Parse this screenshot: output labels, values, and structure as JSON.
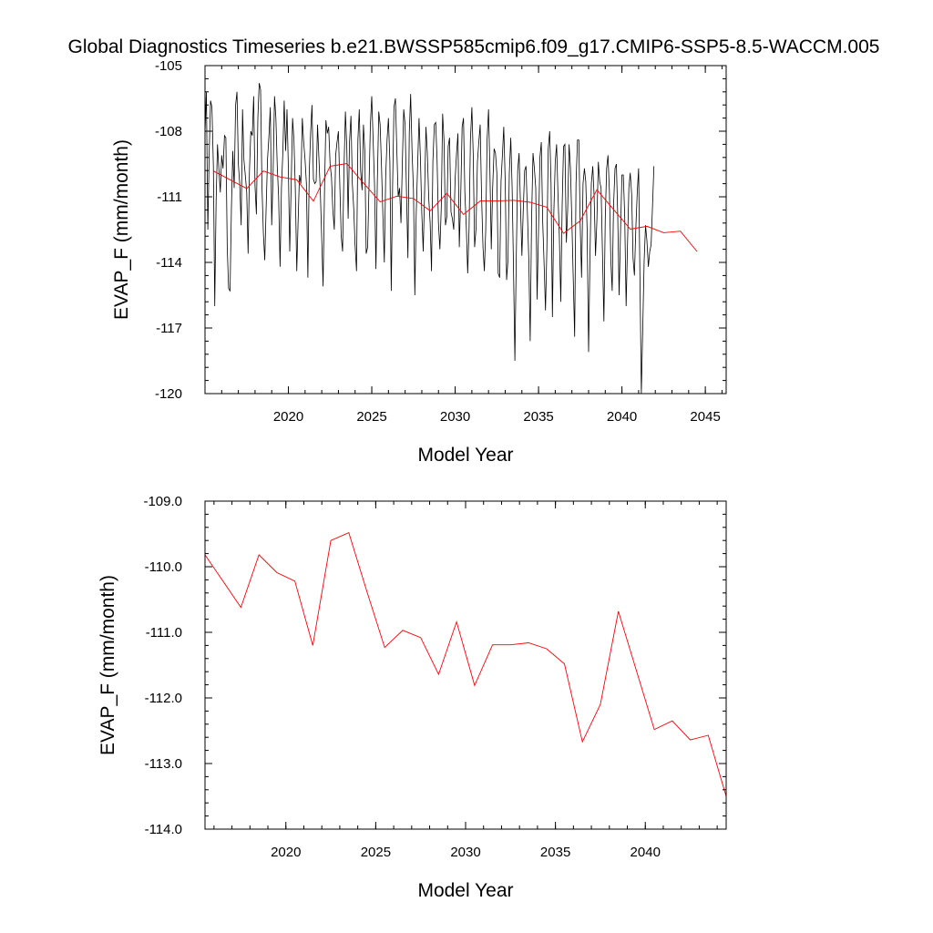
{
  "figure": {
    "title": "Global Diagnostics Timeseries b.e21.BWSSP585cmip6.f09_g17.CMIP6-SSP5-8.5-WACCM.005"
  },
  "chart_data": [
    {
      "type": "line",
      "xlabel": "Model Year",
      "ylabel": "EVAP_F (mm/month)",
      "xlim": [
        2015,
        2046.25
      ],
      "ylim": [
        -120,
        -105
      ],
      "xticks": [
        2020,
        2025,
        2030,
        2035,
        2040,
        2045
      ],
      "xtick_labels": [
        "2020",
        "2025",
        "2030",
        "2035",
        "2040",
        "2045"
      ],
      "yticks": [
        -120,
        -117,
        -114,
        -111,
        -108,
        -105
      ],
      "ytick_labels": [
        "-120",
        "-117",
        "-114",
        "-111",
        "-108",
        "-105"
      ],
      "grid": false,
      "series": [
        {
          "color": "#000000",
          "x_start": 2015.0,
          "x_step": 0.08333,
          "values": [
            -108.1,
            -106.2,
            -112.5,
            -109.0,
            -106.6,
            -106.9,
            -109.6,
            -116.0,
            -111.2,
            -108.6,
            -109.8,
            -110.8,
            -109.1,
            -109.7,
            -108.2,
            -108.3,
            -113.3,
            -115.2,
            -115.3,
            -111.5,
            -108.9,
            -110.6,
            -106.8,
            -106.2,
            -109.5,
            -110.4,
            -112.3,
            -107.0,
            -109.3,
            -110.0,
            -110.8,
            -113.6,
            -109.8,
            -108.0,
            -108.2,
            -106.4,
            -110.5,
            -111.8,
            -107.4,
            -105.8,
            -106.1,
            -110.5,
            -112.7,
            -113.9,
            -111.5,
            -109.3,
            -108.2,
            -106.9,
            -112.3,
            -110.0,
            -106.4,
            -107.4,
            -109.6,
            -111.0,
            -114.2,
            -110.6,
            -109.0,
            -106.6,
            -108.9,
            -107.0,
            -109.7,
            -113.5,
            -110.4,
            -107.4,
            -108.4,
            -110.6,
            -114.4,
            -112.1,
            -110.0,
            -110.4,
            -107.4,
            -108.5,
            -109.3,
            -110.4,
            -114.7,
            -109.9,
            -108.1,
            -106.8,
            -110.2,
            -110.4,
            -110.3,
            -107.7,
            -109.3,
            -110.8,
            -112.9,
            -115.1,
            -110.6,
            -107.5,
            -108.1,
            -107.8,
            -109.5,
            -110.1,
            -111.6,
            -112.5,
            -109.1,
            -108.5,
            -108.0,
            -110.5,
            -112.8,
            -113.5,
            -109.8,
            -107.1,
            -108.7,
            -112.0,
            -108.5,
            -107.3,
            -110.4,
            -111.5,
            -113.2,
            -114.4,
            -108.4,
            -107.0,
            -109.8,
            -110.7,
            -107.7,
            -108.9,
            -113.6,
            -113.3,
            -110.5,
            -107.7,
            -106.4,
            -108.5,
            -110.5,
            -114.3,
            -110.4,
            -107.1,
            -107.7,
            -109.6,
            -111.8,
            -114.0,
            -110.1,
            -108.4,
            -107.4,
            -109.4,
            -115.3,
            -110.5,
            -106.9,
            -106.5,
            -108.8,
            -111.0,
            -110.6,
            -112.2,
            -109.4,
            -107.0,
            -107.7,
            -110.9,
            -113.8,
            -108.1,
            -106.3,
            -109.0,
            -110.7,
            -115.5,
            -111.8,
            -109.5,
            -107.4,
            -109.2,
            -111.7,
            -113.5,
            -110.8,
            -107.8,
            -109.0,
            -111.1,
            -112.2,
            -114.4,
            -109.4,
            -107.7,
            -107.6,
            -109.3,
            -112.2,
            -113.4,
            -111.5,
            -107.2,
            -108.4,
            -112.3,
            -111.9,
            -108.7,
            -108.3,
            -111.7,
            -112.0,
            -112.5,
            -110.2,
            -109.0,
            -108.1,
            -113.3,
            -110.9,
            -107.8,
            -107.4,
            -110.8,
            -112.4,
            -114.5,
            -112.5,
            -108.4,
            -106.9,
            -109.1,
            -113.3,
            -112.5,
            -109.4,
            -108.5,
            -107.7,
            -110.9,
            -113.3,
            -114.4,
            -112.5,
            -108.4,
            -107.0,
            -109.8,
            -113.4,
            -110.6,
            -108.8,
            -109.0,
            -109.9,
            -114.5,
            -114.7,
            -110.3,
            -109.1,
            -107.8,
            -110.3,
            -114.8,
            -113.9,
            -109.9,
            -108.3,
            -110.6,
            -114.3,
            -118.5,
            -113.6,
            -109.8,
            -109.0,
            -111.3,
            -113.7,
            -111.6,
            -109.8,
            -109.6,
            -111.8,
            -113.9,
            -117.6,
            -112.1,
            -109.0,
            -109.7,
            -110.6,
            -115.7,
            -112.4,
            -109.2,
            -108.5,
            -112.1,
            -114.1,
            -116.2,
            -113.4,
            -108.8,
            -108.0,
            -110.4,
            -116.5,
            -111.8,
            -109.4,
            -108.6,
            -110.9,
            -112.8,
            -115.8,
            -111.4,
            -108.7,
            -108.6,
            -113.1,
            -111.5,
            -108.6,
            -109.7,
            -112.2,
            -114.8,
            -117.4,
            -110.4,
            -108.4,
            -108.4,
            -112.3,
            -114.7,
            -110.4,
            -109.7,
            -110.3,
            -112.5,
            -118.1,
            -113.8,
            -110.4,
            -109.6,
            -111.0,
            -113.7,
            -112.1,
            -109.4,
            -110.3,
            -110.6,
            -113.5,
            -116.7,
            -112.0,
            -109.7,
            -109.1,
            -110.8,
            -113.9,
            -115.3,
            -111.4,
            -109.7,
            -109.5,
            -111.9,
            -115.5,
            -112.5,
            -110.0,
            -110.0,
            -111.8,
            -116.0,
            -113.2,
            -110.6,
            -109.9,
            -110.9,
            -113.8,
            -114.6,
            -112.5,
            -110.8,
            -109.7,
            -114.8,
            -120.0,
            -116.9,
            -113.9,
            -112.3,
            -113.0,
            -114.2,
            -113.5,
            -113.2,
            -111.5,
            -109.6
          ]
        },
        {
          "color": "#ff0000",
          "x": [
            2015.5,
            2016.5,
            2017.5,
            2018.5,
            2019.5,
            2020.5,
            2021.5,
            2022.5,
            2023.5,
            2024.5,
            2025.5,
            2026.5,
            2027.5,
            2028.5,
            2029.5,
            2030.5,
            2031.5,
            2032.5,
            2033.5,
            2034.5,
            2035.5,
            2036.5,
            2037.5,
            2038.5,
            2039.5,
            2040.5,
            2041.5,
            2042.5,
            2043.5,
            2044.5
          ],
          "values": [
            -109.82,
            -110.22,
            -110.62,
            -109.82,
            -110.09,
            -110.22,
            -111.2,
            -109.6,
            -109.48,
            -110.37,
            -111.23,
            -110.97,
            -111.08,
            -111.64,
            -110.84,
            -111.81,
            -111.19,
            -111.19,
            -111.16,
            -111.25,
            -111.48,
            -112.67,
            -112.1,
            -110.68,
            -111.58,
            -112.48,
            -112.35,
            -112.64,
            -112.57,
            -113.5
          ]
        }
      ]
    },
    {
      "type": "line",
      "xlabel": "Model Year",
      "ylabel": "EVAP_F (mm/month)",
      "xlim": [
        2015.5,
        2044.5
      ],
      "ylim": [
        -114.0,
        -109.0
      ],
      "xticks": [
        2020,
        2025,
        2030,
        2035,
        2040
      ],
      "xtick_labels": [
        "2020",
        "2025",
        "2030",
        "2035",
        "2040"
      ],
      "yticks": [
        -114.0,
        -113.0,
        -112.0,
        -111.0,
        -110.0,
        -109.0
      ],
      "ytick_labels": [
        "-114.0",
        "-113.0",
        "-112.0",
        "-111.0",
        "-110.0",
        "-109.0"
      ],
      "grid": false,
      "series": [
        {
          "color": "#ff0000",
          "x": [
            2015.5,
            2016.5,
            2017.5,
            2018.5,
            2019.5,
            2020.5,
            2021.5,
            2022.5,
            2023.5,
            2024.5,
            2025.5,
            2026.5,
            2027.5,
            2028.5,
            2029.5,
            2030.5,
            2031.5,
            2032.5,
            2033.5,
            2034.5,
            2035.5,
            2036.5,
            2037.5,
            2038.5,
            2039.5,
            2040.5,
            2041.5,
            2042.5,
            2043.5,
            2044.5
          ],
          "values": [
            -109.82,
            -110.22,
            -110.62,
            -109.82,
            -110.09,
            -110.22,
            -111.2,
            -109.6,
            -109.48,
            -110.37,
            -111.23,
            -110.97,
            -111.08,
            -111.64,
            -110.84,
            -111.81,
            -111.19,
            -111.19,
            -111.16,
            -111.25,
            -111.48,
            -112.67,
            -112.1,
            -110.68,
            -111.58,
            -112.48,
            -112.35,
            -112.64,
            -112.57,
            -113.5
          ]
        }
      ]
    }
  ]
}
